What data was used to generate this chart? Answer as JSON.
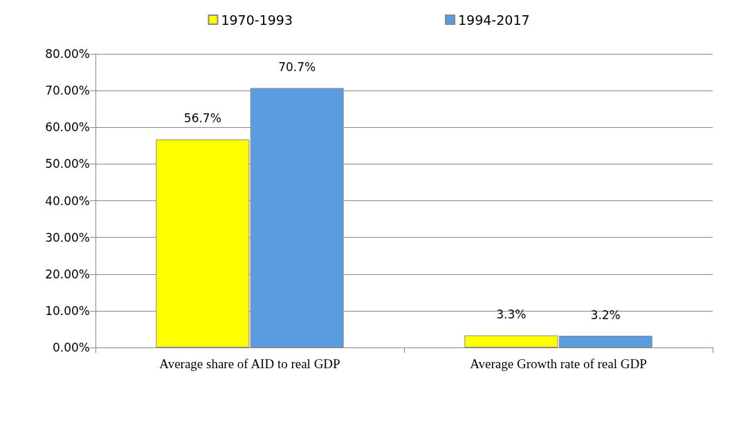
{
  "chart_data": {
    "type": "bar",
    "categories": [
      "Average share of AID to real GDP",
      "Average Growth rate of real GDP"
    ],
    "series": [
      {
        "name": "1970-1993",
        "color": "#ffff00",
        "values": [
          56.7,
          3.3
        ],
        "value_labels": [
          "56.7%",
          "3.3%"
        ]
      },
      {
        "name": "1994-2017",
        "color": "#5b9be0",
        "values": [
          70.7,
          3.2
        ],
        "value_labels": [
          "70.7%",
          "3.2%"
        ]
      }
    ],
    "ylim": [
      0,
      80
    ],
    "yticks": [
      {
        "value": 0,
        "label": "0.00%"
      },
      {
        "value": 10,
        "label": "10.00%"
      },
      {
        "value": 20,
        "label": "20.00%"
      },
      {
        "value": 30,
        "label": "30.00%"
      },
      {
        "value": 40,
        "label": "40.00%"
      },
      {
        "value": 50,
        "label": "50.00%"
      },
      {
        "value": 60,
        "label": "60.00%"
      },
      {
        "value": 70,
        "label": "70.00%"
      },
      {
        "value": 80,
        "label": "80.00%"
      }
    ],
    "grid": "y",
    "legend": "top"
  }
}
